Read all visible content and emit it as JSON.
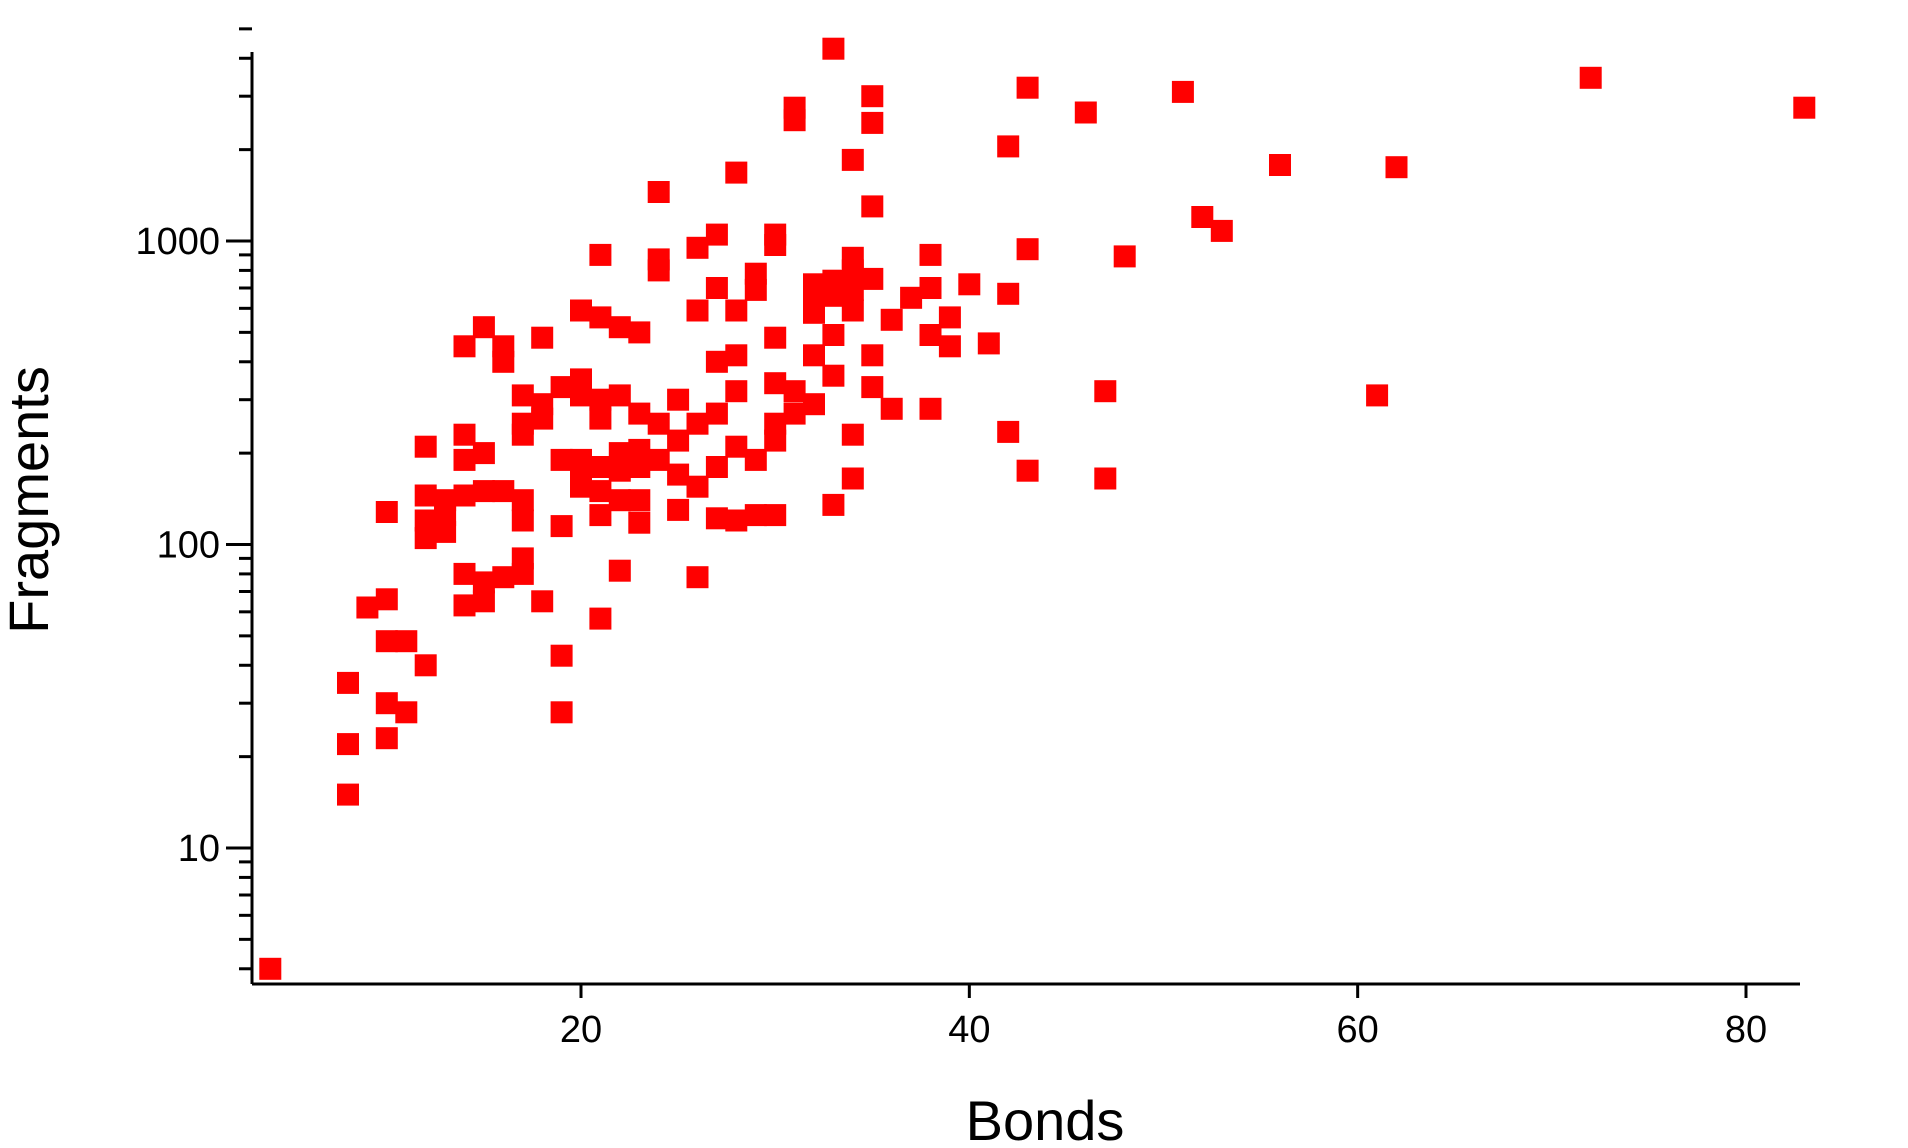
{
  "chart_data": {
    "type": "scatter",
    "title": "",
    "xlabel": "Bonds",
    "ylabel": "Fragments",
    "xlim": [
      3,
      83
    ],
    "ylim": [
      3.5,
      5000
    ],
    "yscale": "log",
    "grid": false,
    "legend": "none",
    "marker": "square",
    "color": "#ff0000",
    "x_ticks": [
      20,
      40,
      60,
      80
    ],
    "x_tick_labels": [
      "20",
      "40",
      "60",
      "80"
    ],
    "y_ticks": [
      10,
      100,
      1000
    ],
    "y_tick_labels": [
      "10",
      "100",
      "1000"
    ],
    "series": [
      {
        "points": [
          [
            4,
            4
          ],
          [
            8,
            35
          ],
          [
            8,
            22
          ],
          [
            8,
            15
          ],
          [
            9,
            62
          ],
          [
            10,
            128
          ],
          [
            10,
            66
          ],
          [
            10,
            48
          ],
          [
            10,
            30
          ],
          [
            10,
            23
          ],
          [
            11,
            48
          ],
          [
            11,
            28
          ],
          [
            12,
            210
          ],
          [
            12,
            145
          ],
          [
            12,
            120
          ],
          [
            12,
            105
          ],
          [
            12,
            40
          ],
          [
            13,
            140
          ],
          [
            13,
            125
          ],
          [
            13,
            110
          ],
          [
            14,
            450
          ],
          [
            14,
            230
          ],
          [
            14,
            190
          ],
          [
            14,
            145
          ],
          [
            14,
            80
          ],
          [
            14,
            63
          ],
          [
            15,
            520
          ],
          [
            15,
            200
          ],
          [
            15,
            150
          ],
          [
            15,
            75
          ],
          [
            15,
            65
          ],
          [
            16,
            450
          ],
          [
            16,
            400
          ],
          [
            16,
            150
          ],
          [
            16,
            78
          ],
          [
            17,
            310
          ],
          [
            17,
            250
          ],
          [
            17,
            230
          ],
          [
            17,
            140
          ],
          [
            17,
            120
          ],
          [
            17,
            90
          ],
          [
            17,
            80
          ],
          [
            18,
            480
          ],
          [
            18,
            290
          ],
          [
            18,
            260
          ],
          [
            18,
            65
          ],
          [
            19,
            330
          ],
          [
            19,
            190
          ],
          [
            19,
            115
          ],
          [
            19,
            43
          ],
          [
            19,
            28
          ],
          [
            20,
            590
          ],
          [
            20,
            350
          ],
          [
            20,
            310
          ],
          [
            20,
            190
          ],
          [
            20,
            170
          ],
          [
            20,
            155
          ],
          [
            21,
            900
          ],
          [
            21,
            560
          ],
          [
            21,
            300
          ],
          [
            21,
            260
          ],
          [
            21,
            180
          ],
          [
            21,
            150
          ],
          [
            21,
            125
          ],
          [
            21,
            57
          ],
          [
            22,
            520
          ],
          [
            22,
            310
          ],
          [
            22,
            200
          ],
          [
            22,
            175
          ],
          [
            22,
            140
          ],
          [
            22,
            82
          ],
          [
            23,
            500
          ],
          [
            23,
            270
          ],
          [
            23,
            205
          ],
          [
            23,
            180
          ],
          [
            23,
            140
          ],
          [
            23,
            118
          ],
          [
            24,
            1450
          ],
          [
            24,
            870
          ],
          [
            24,
            800
          ],
          [
            24,
            250
          ],
          [
            24,
            190
          ],
          [
            25,
            300
          ],
          [
            25,
            220
          ],
          [
            25,
            170
          ],
          [
            25,
            130
          ],
          [
            26,
            950
          ],
          [
            26,
            590
          ],
          [
            26,
            250
          ],
          [
            26,
            155
          ],
          [
            26,
            78
          ],
          [
            27,
            1050
          ],
          [
            27,
            700
          ],
          [
            27,
            400
          ],
          [
            27,
            270
          ],
          [
            27,
            180
          ],
          [
            27,
            122
          ],
          [
            28,
            1680
          ],
          [
            28,
            590
          ],
          [
            28,
            420
          ],
          [
            28,
            320
          ],
          [
            28,
            210
          ],
          [
            28,
            120
          ],
          [
            29,
            780
          ],
          [
            29,
            690
          ],
          [
            29,
            190
          ],
          [
            29,
            125
          ],
          [
            30,
            1050
          ],
          [
            30,
            970
          ],
          [
            30,
            480
          ],
          [
            30,
            340
          ],
          [
            30,
            250
          ],
          [
            30,
            220
          ],
          [
            30,
            125
          ],
          [
            31,
            2750
          ],
          [
            31,
            2500
          ],
          [
            31,
            320
          ],
          [
            31,
            270
          ],
          [
            32,
            720
          ],
          [
            32,
            640
          ],
          [
            32,
            580
          ],
          [
            32,
            420
          ],
          [
            32,
            290
          ],
          [
            33,
            4300
          ],
          [
            33,
            740
          ],
          [
            33,
            660
          ],
          [
            33,
            490
          ],
          [
            33,
            360
          ],
          [
            33,
            135
          ],
          [
            34,
            1850
          ],
          [
            34,
            880
          ],
          [
            34,
            800
          ],
          [
            34,
            690
          ],
          [
            34,
            590
          ],
          [
            34,
            230
          ],
          [
            34,
            165
          ],
          [
            35,
            3000
          ],
          [
            35,
            2450
          ],
          [
            35,
            1300
          ],
          [
            35,
            750
          ],
          [
            35,
            420
          ],
          [
            35,
            330
          ],
          [
            36,
            550
          ],
          [
            36,
            280
          ],
          [
            37,
            650
          ],
          [
            38,
            900
          ],
          [
            38,
            700
          ],
          [
            38,
            490
          ],
          [
            38,
            280
          ],
          [
            39,
            560
          ],
          [
            39,
            450
          ],
          [
            40,
            720
          ],
          [
            41,
            460
          ],
          [
            42,
            2050
          ],
          [
            42,
            670
          ],
          [
            42,
            235
          ],
          [
            43,
            3200
          ],
          [
            43,
            940
          ],
          [
            43,
            175
          ],
          [
            46,
            2650
          ],
          [
            47,
            320
          ],
          [
            47,
            165
          ],
          [
            48,
            890
          ],
          [
            51,
            3100
          ],
          [
            52,
            1200
          ],
          [
            53,
            1080
          ],
          [
            56,
            1780
          ],
          [
            61,
            310
          ],
          [
            62,
            1750
          ],
          [
            72,
            3450
          ],
          [
            83,
            2750
          ]
        ]
      }
    ]
  }
}
